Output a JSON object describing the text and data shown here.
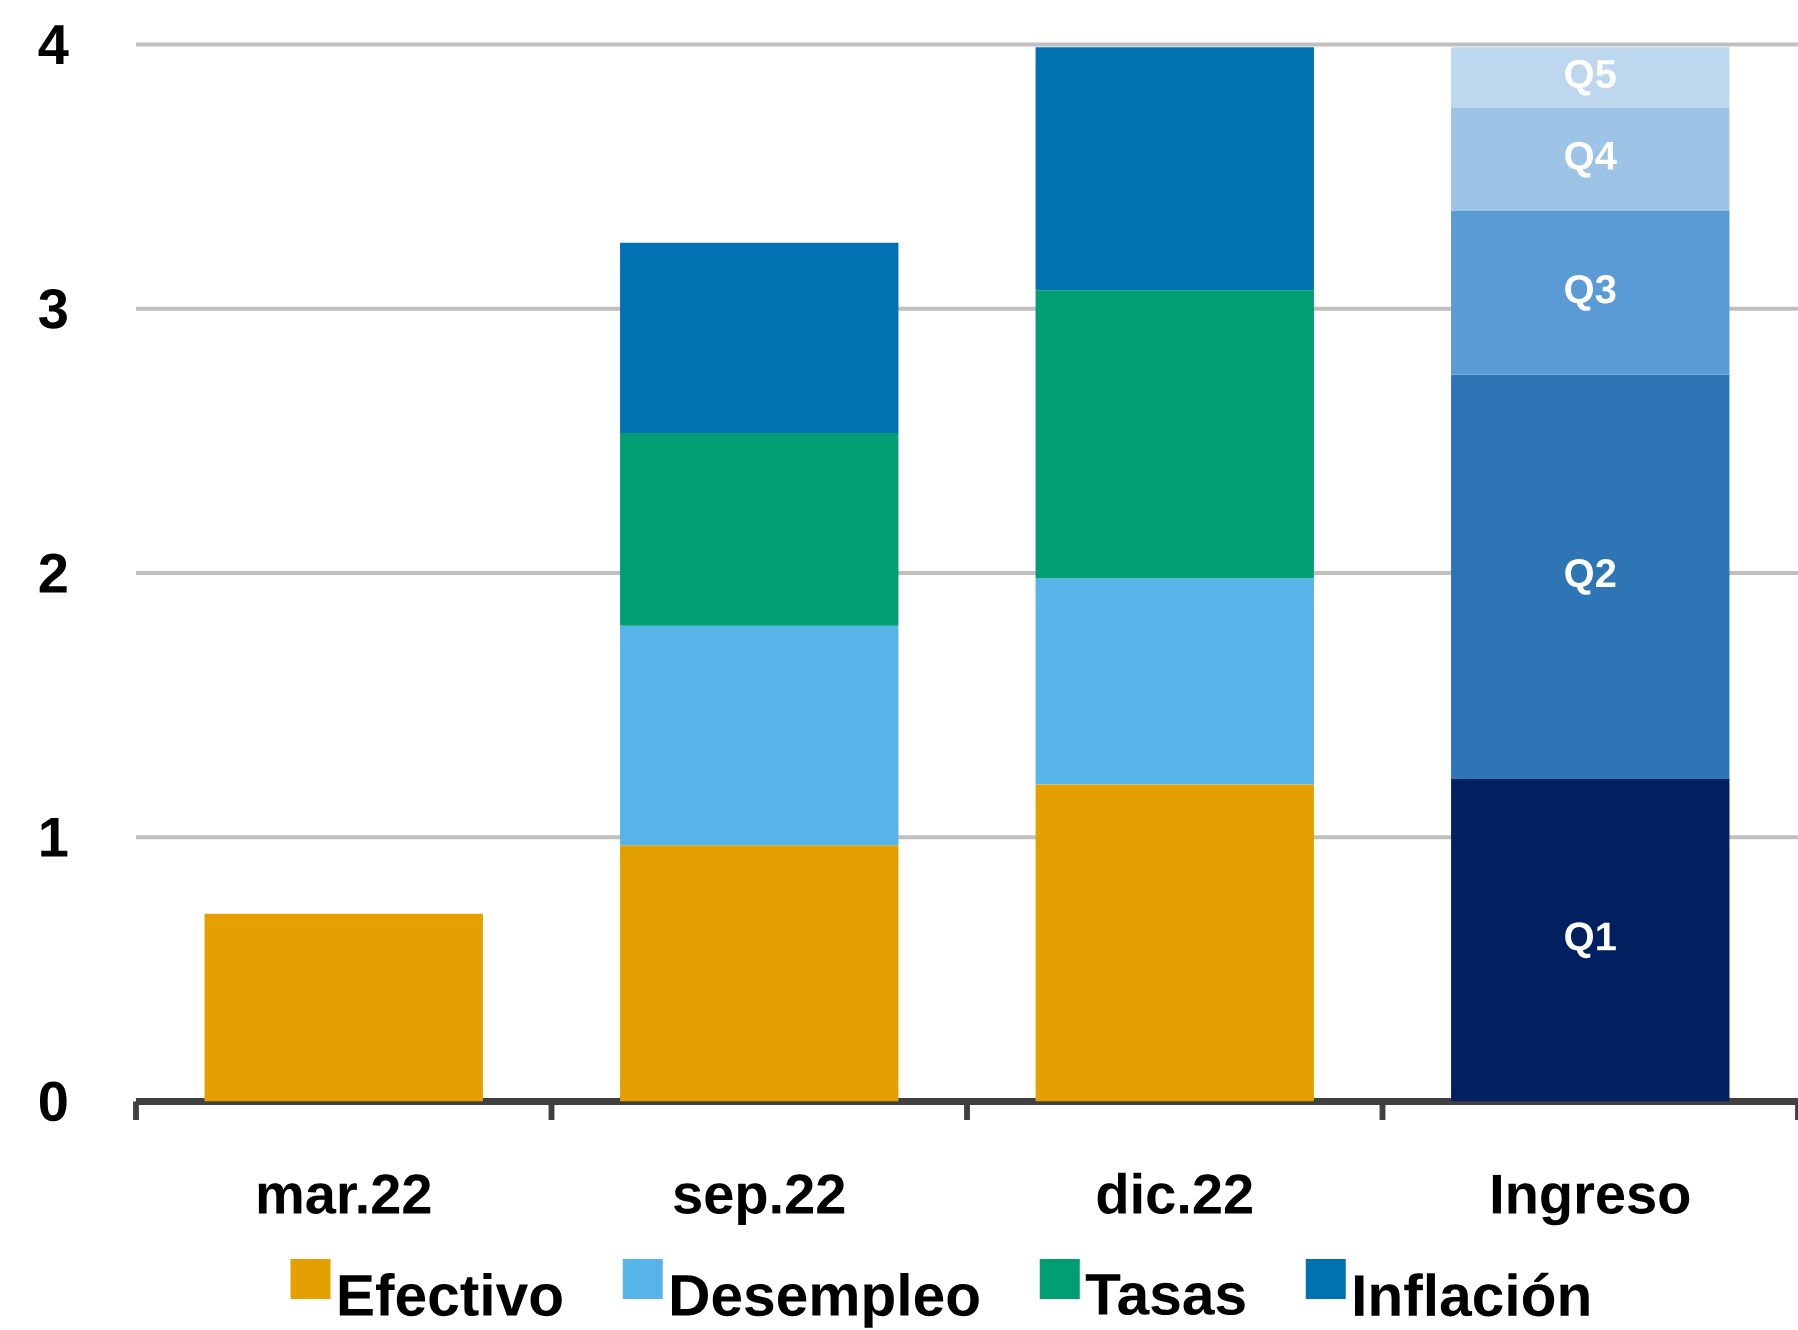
{
  "chart_data": {
    "type": "bar",
    "stacked": true,
    "categories": [
      "mar.22",
      "sep.22",
      "dic.22",
      "Ingreso"
    ],
    "series": [
      {
        "name": "Efectivo",
        "color": "#e3a000",
        "values": [
          0.71,
          0.97,
          1.2,
          null
        ]
      },
      {
        "name": "Desempleo",
        "color": "#56b4e8",
        "values": [
          null,
          0.83,
          0.78,
          null
        ]
      },
      {
        "name": "Tasas",
        "color": "#009e73",
        "values": [
          null,
          0.73,
          1.09,
          null
        ]
      },
      {
        "name": "Inflación",
        "color": "#0072b2",
        "values": [
          null,
          0.72,
          0.92,
          null
        ]
      },
      {
        "name": "Q1",
        "color": "#002060",
        "values": [
          null,
          null,
          null,
          1.22
        ]
      },
      {
        "name": "Q2",
        "color": "#2e75b6",
        "values": [
          null,
          null,
          null,
          1.53
        ]
      },
      {
        "name": "Q3",
        "color": "#5b9bd5",
        "values": [
          null,
          null,
          null,
          0.62
        ]
      },
      {
        "name": "Q4",
        "color": "#9dc3e6",
        "values": [
          null,
          null,
          null,
          0.39
        ]
      },
      {
        "name": "Q5",
        "color": "#bdd7ee",
        "values": [
          null,
          null,
          null,
          0.23
        ]
      }
    ],
    "ylim": [
      0,
      4
    ],
    "yticks": [
      0,
      1,
      2,
      3,
      4
    ],
    "grid": "y",
    "legend": "bottom"
  }
}
